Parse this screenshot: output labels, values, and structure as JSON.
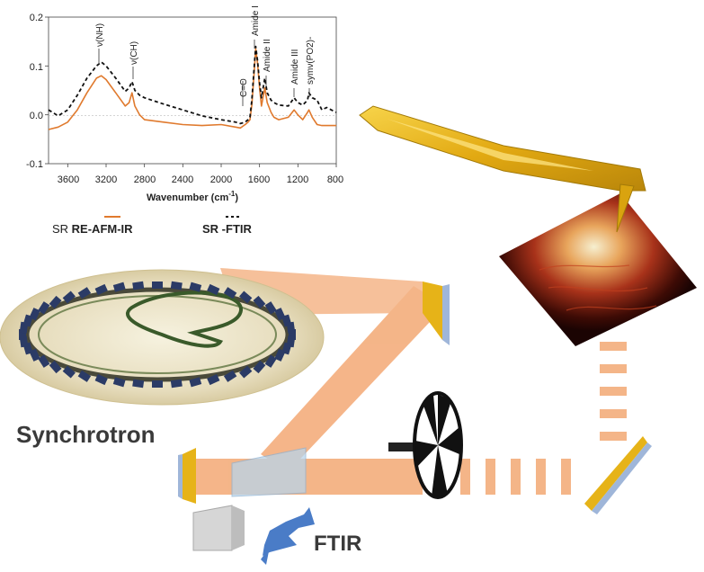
{
  "chart_data": {
    "type": "line",
    "xlabel": "Wavenumber (cm",
    "xlabel_sup": "-1",
    "xlabel_end": ")",
    "xlim": [
      3800,
      800
    ],
    "ylim": [
      -0.1,
      0.2
    ],
    "x_ticks": [
      "3600",
      "3200",
      "2800",
      "2400",
      "2000",
      "1600",
      "1200",
      "800"
    ],
    "y_ticks": [
      "0.2",
      "0.1",
      "0.0",
      "-0.1"
    ],
    "legend": [
      {
        "prefix": "SR ",
        "bold": "RE-AFM-IR",
        "style": "solid",
        "color": "#e07a2e"
      },
      {
        "prefix": "",
        "bold": "SR -FTIR",
        "style": "dashed",
        "color": "#111111"
      }
    ],
    "annotations": [
      {
        "text": "ν(NH)",
        "x": 3290
      },
      {
        "text": "ν(CH)",
        "x": 2930
      },
      {
        "text": "C=O",
        "x": 1740
      },
      {
        "text": "Amide I",
        "x": 1650
      },
      {
        "text": "Amide II",
        "x": 1545
      },
      {
        "text": "Amide III",
        "x": 1240
      },
      {
        "text": "symν(PO2)-",
        "x": 1085
      }
    ],
    "series": [
      {
        "name": "SR RE-AFM-IR",
        "color": "#e07a2e",
        "style": "solid",
        "x": [
          3800,
          3700,
          3600,
          3500,
          3400,
          3300,
          3250,
          3200,
          3100,
          3000,
          2960,
          2930,
          2900,
          2850,
          2800,
          2600,
          2400,
          2200,
          2000,
          1850,
          1800,
          1750,
          1720,
          1700,
          1680,
          1655,
          1640,
          1620,
          1600,
          1580,
          1545,
          1520,
          1480,
          1450,
          1400,
          1300,
          1240,
          1200,
          1150,
          1100,
          1085,
          1050,
          1000,
          950,
          900,
          800
        ],
        "y": [
          -0.03,
          -0.025,
          -0.015,
          0.01,
          0.045,
          0.075,
          0.08,
          0.072,
          0.045,
          0.018,
          0.025,
          0.045,
          0.018,
          0.0,
          -0.01,
          -0.015,
          -0.02,
          -0.022,
          -0.02,
          -0.025,
          -0.027,
          -0.02,
          -0.015,
          -0.01,
          0.02,
          0.09,
          0.135,
          0.105,
          0.055,
          0.018,
          0.055,
          0.025,
          0.005,
          -0.005,
          -0.01,
          -0.005,
          0.01,
          0.0,
          -0.01,
          0.005,
          0.01,
          -0.005,
          -0.02,
          -0.022,
          -0.022,
          -0.022
        ]
      },
      {
        "name": "SR -FTIR",
        "color": "#111111",
        "style": "dashed",
        "x": [
          3800,
          3700,
          3600,
          3500,
          3400,
          3300,
          3250,
          3200,
          3100,
          3000,
          2960,
          2930,
          2900,
          2850,
          2800,
          2600,
          2400,
          2200,
          2000,
          1850,
          1800,
          1750,
          1720,
          1700,
          1680,
          1655,
          1640,
          1620,
          1600,
          1580,
          1545,
          1520,
          1480,
          1450,
          1400,
          1300,
          1240,
          1200,
          1150,
          1100,
          1085,
          1050,
          1000,
          950,
          900,
          800
        ],
        "y": [
          0.01,
          -0.002,
          0.01,
          0.04,
          0.075,
          0.1,
          0.108,
          0.1,
          0.075,
          0.048,
          0.055,
          0.068,
          0.05,
          0.04,
          0.035,
          0.022,
          0.01,
          -0.002,
          -0.01,
          -0.015,
          -0.018,
          -0.015,
          -0.01,
          -0.005,
          0.03,
          0.1,
          0.14,
          0.11,
          0.065,
          0.035,
          0.075,
          0.045,
          0.03,
          0.025,
          0.02,
          0.018,
          0.035,
          0.025,
          0.02,
          0.03,
          0.045,
          0.035,
          0.03,
          0.01,
          0.015,
          0.005
        ]
      }
    ]
  },
  "labels": {
    "synchrotron": "Synchrotron",
    "ftir": "FTIR"
  },
  "colors": {
    "beam": "#f2a36b",
    "gold": "#e6b318",
    "mirror_blue": "#9fb6d9",
    "arrow_blue": "#4a7cc7",
    "ring_base": "#e8e0c4",
    "magnet": "#2b3b66"
  }
}
